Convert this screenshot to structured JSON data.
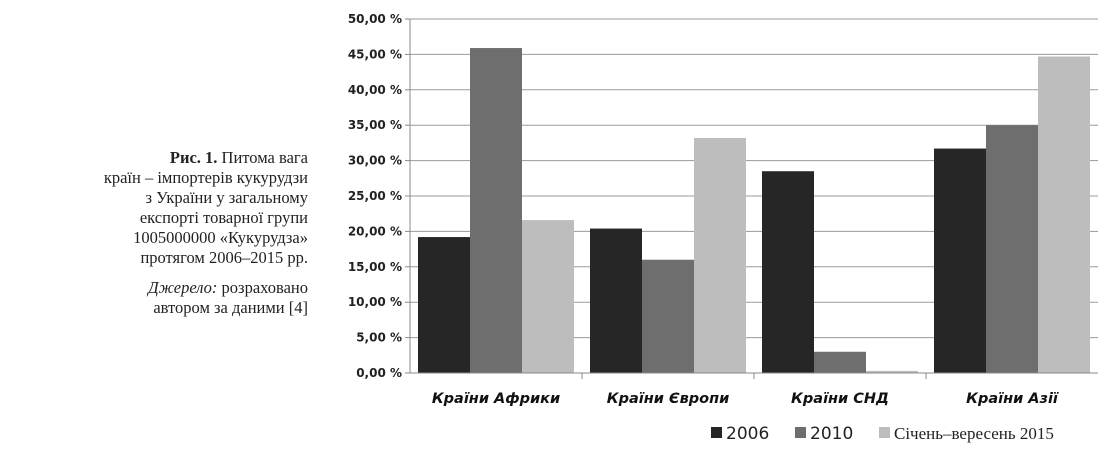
{
  "caption": {
    "figure_label": "Рис. 1.",
    "lines": [
      "Питома вага",
      "країн – імпортерів кукурудзи",
      "з України у загальному",
      "експорті товарної групи",
      "1005000000 «Кукурудза»",
      "протягом 2006–2015 рр."
    ],
    "source_label": "Джерело:",
    "source_text_1": "розраховано",
    "source_text_2": "автором за даними [4]"
  },
  "chart_data": {
    "type": "bar",
    "categories": [
      "Країни Африки",
      "Країни Європи",
      "Країни СНД",
      "Країни Азії"
    ],
    "series": [
      {
        "name": "2006",
        "values": [
          19.2,
          20.4,
          28.5,
          31.7
        ],
        "color": "#262626"
      },
      {
        "name": "2010",
        "values": [
          45.9,
          16.0,
          3.0,
          35.0
        ],
        "color": "#6e6e6e"
      },
      {
        "name": "Січень–вересень 2015",
        "values": [
          21.6,
          33.2,
          0.3,
          44.7
        ],
        "color": "#bdbdbd"
      }
    ],
    "yticks": [
      "0,00 %",
      "5,00 %",
      "10,00 %",
      "15,00 %",
      "20,00 %",
      "25,00 %",
      "30,00 %",
      "35,00 %",
      "40,00 %",
      "45,00 %",
      "50,00 %"
    ],
    "ylim": [
      0,
      50
    ],
    "ystep": 5,
    "grid": true,
    "legend_position": "bottom"
  }
}
